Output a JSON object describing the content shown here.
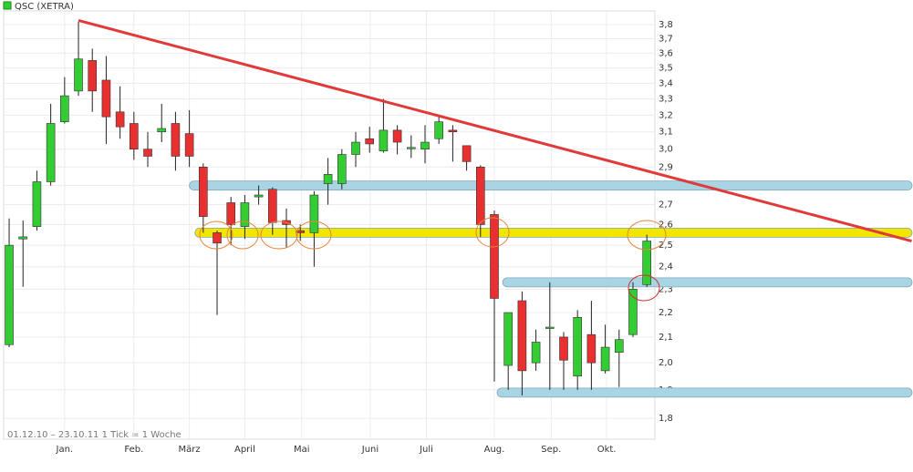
{
  "chart_data": {
    "type": "candlestick",
    "series_name": "QSC (XETRA)",
    "footnote": "01.12.10 – 23.10.11   1 Tick = 1 Woche",
    "up_color": "#33cc33",
    "down_color": "#e83030",
    "log_scale": true,
    "grid": true,
    "xlim": [
      -0.66,
      46.58
    ],
    "xticks": [
      {
        "value": 4,
        "label": "Jan."
      },
      {
        "value": 9,
        "label": "Feb."
      },
      {
        "value": 13,
        "label": "März"
      },
      {
        "value": 17,
        "label": "April"
      },
      {
        "value": 21.1,
        "label": "Mai"
      },
      {
        "value": 26.05,
        "label": "Juni"
      },
      {
        "value": 30.1,
        "label": "Juli"
      },
      {
        "value": 35,
        "label": "Aug."
      },
      {
        "value": 39.1,
        "label": "Sep."
      },
      {
        "value": 43.1,
        "label": "Okt."
      }
    ],
    "ylim": [
      1.73,
      3.9
    ],
    "yticks": [
      {
        "value": 1.8,
        "label": "1,8"
      },
      {
        "value": 1.9,
        "label": "1,9"
      },
      {
        "value": 2,
        "label": "2,0"
      },
      {
        "value": 2.1,
        "label": "2,1"
      },
      {
        "value": 2.2,
        "label": "2,2"
      },
      {
        "value": 2.3,
        "label": "2,3"
      },
      {
        "value": 2.4,
        "label": "2,4"
      },
      {
        "value": 2.5,
        "label": "2,5"
      },
      {
        "value": 2.6,
        "label": "2,6"
      },
      {
        "value": 2.7,
        "label": "2,7"
      },
      {
        "value": 2.8,
        "label": "2,8"
      },
      {
        "value": 2.9,
        "label": "2,9"
      },
      {
        "value": 3,
        "label": "3,0"
      },
      {
        "value": 3.1,
        "label": "3,1"
      },
      {
        "value": 3.2,
        "label": "3,2"
      },
      {
        "value": 3.3,
        "label": "3,3"
      },
      {
        "value": 3.4,
        "label": "3,4"
      },
      {
        "value": 3.5,
        "label": "3,5"
      },
      {
        "value": 3.6,
        "label": "3,6"
      },
      {
        "value": 3.7,
        "label": "3,7"
      },
      {
        "value": 3.8,
        "label": "3,8"
      }
    ],
    "open": [
      2.07,
      2.53,
      2.59,
      2.82,
      3.16,
      3.35,
      3.55,
      3.42,
      3.22,
      3.15,
      3.0,
      3.1,
      3.15,
      3.09,
      2.9,
      2.56,
      2.71,
      2.59,
      2.74,
      2.78,
      2.62,
      2.57,
      2.56,
      2.81,
      2.81,
      2.97,
      3.06,
      2.99,
      3.11,
      3.01,
      3.0,
      3.06,
      3.11,
      3.02,
      2.9,
      2.65,
      1.99,
      2.25,
      2.0,
      2.14,
      2.1,
      1.95,
      2.11,
      1.97,
      2.04,
      2.11,
      2.32
    ],
    "high": [
      2.63,
      2.62,
      2.88,
      3.27,
      3.44,
      3.82,
      3.63,
      3.58,
      3.38,
      3.22,
      3.1,
      3.27,
      3.22,
      3.23,
      2.92,
      2.57,
      2.74,
      2.75,
      2.8,
      2.79,
      2.68,
      2.6,
      2.77,
      2.95,
      3.0,
      3.1,
      3.13,
      3.3,
      3.14,
      3.08,
      3.14,
      3.2,
      3.14,
      3.02,
      2.91,
      2.67,
      2.2,
      2.29,
      2.13,
      2.33,
      2.12,
      2.21,
      2.25,
      2.15,
      2.13,
      2.33,
      2.55
    ],
    "low": [
      2.06,
      2.31,
      2.57,
      2.8,
      3.15,
      3.32,
      3.22,
      3.03,
      3.06,
      2.94,
      2.9,
      3.04,
      2.88,
      2.9,
      2.56,
      2.19,
      2.5,
      2.53,
      2.7,
      2.55,
      2.49,
      2.52,
      2.4,
      2.7,
      2.78,
      2.9,
      2.98,
      2.98,
      2.97,
      2.95,
      2.92,
      3.03,
      2.93,
      2.88,
      2.54,
      1.93,
      1.9,
      1.88,
      1.97,
      1.9,
      1.9,
      1.9,
      1.9,
      1.96,
      1.91,
      2.1,
      2.31
    ],
    "close": [
      2.5,
      2.54,
      2.82,
      3.15,
      3.32,
      3.56,
      3.35,
      3.19,
      3.13,
      3.0,
      2.96,
      3.12,
      2.96,
      2.96,
      2.64,
      2.51,
      2.6,
      2.71,
      2.75,
      2.61,
      2.6,
      2.56,
      2.75,
      2.86,
      2.97,
      3.04,
      3.03,
      3.11,
      3.04,
      3.01,
      3.04,
      3.16,
      3.1,
      2.93,
      2.6,
      2.26,
      2.2,
      1.97,
      2.08,
      2.14,
      2.01,
      2.18,
      2.0,
      2.06,
      2.09,
      2.3,
      2.52
    ],
    "trendline": {
      "color": "#e03a3a",
      "start": [
        5,
        3.83
      ],
      "end": [
        65.1,
        2.52
      ]
    },
    "levels": [
      {
        "value": 2.8,
        "from": 13,
        "color": "#a8d4e4"
      },
      {
        "value": 2.56,
        "from": 13.4,
        "color": "#f2e600"
      },
      {
        "value": 2.33,
        "from": 35.6,
        "color": "#a8d4e4"
      },
      {
        "value": 1.89,
        "from": 35.2,
        "color": "#a8d4e4"
      }
    ]
  }
}
